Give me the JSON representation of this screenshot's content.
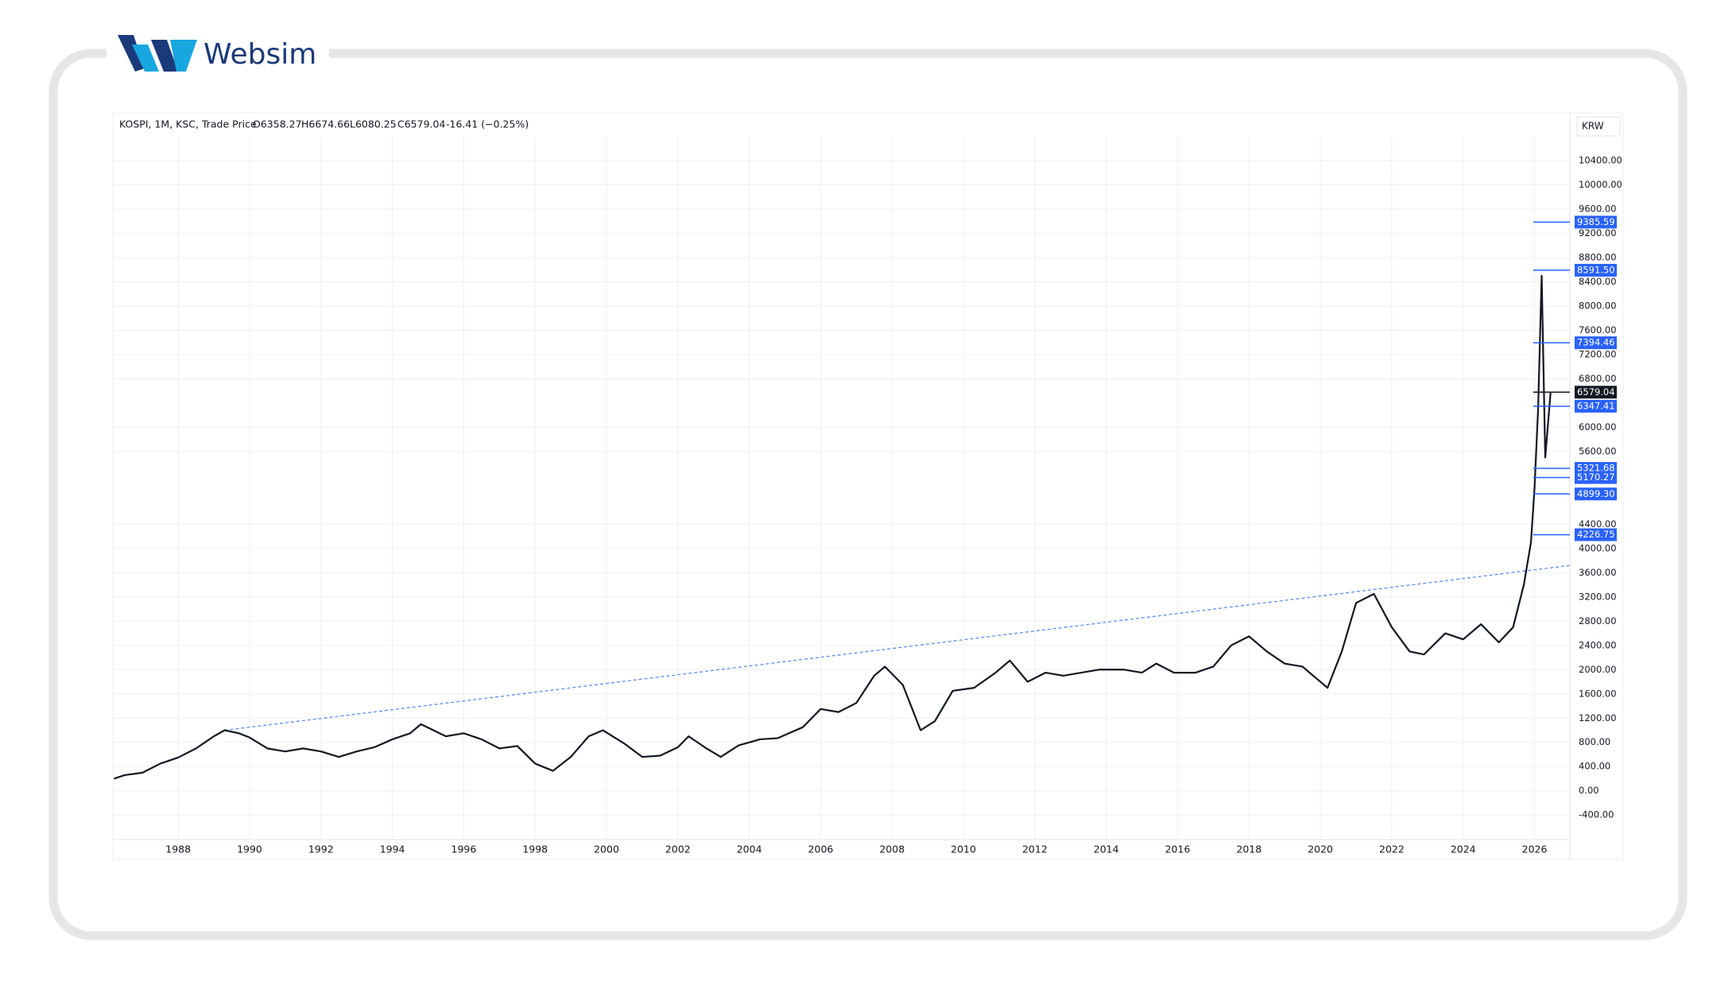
{
  "brand": "Websim",
  "chart_data": {
    "type": "line",
    "title": "KOSPI, 1M, KSC, Trade Price",
    "ohlc_header": [
      "O6358.27",
      "H6674.66",
      "L6080.25",
      "C6579.04",
      "-16.41 (−0.25%)"
    ],
    "currency": "KRW",
    "color": "#131722",
    "x": [
      1986.2,
      1986.5,
      1987.0,
      1987.5,
      1988.0,
      1988.5,
      1989.0,
      1989.3,
      1989.7,
      1990.0,
      1990.5,
      1991.0,
      1991.5,
      1992.0,
      1992.5,
      1993.0,
      1993.5,
      1994.0,
      1994.5,
      1994.8,
      1995.5,
      1996.0,
      1996.5,
      1997.0,
      1997.5,
      1998.0,
      1998.5,
      1999.0,
      1999.5,
      1999.9,
      2000.5,
      2001.0,
      2001.5,
      2002.0,
      2002.3,
      2002.8,
      2003.2,
      2003.7,
      2004.3,
      2004.8,
      2005.5,
      2006.0,
      2006.5,
      2007.0,
      2007.5,
      2007.8,
      2008.3,
      2008.8,
      2009.2,
      2009.7,
      2010.3,
      2010.9,
      2011.3,
      2011.8,
      2012.3,
      2012.8,
      2013.3,
      2013.8,
      2014.5,
      2015.0,
      2015.4,
      2015.9,
      2016.5,
      2017.0,
      2017.5,
      2018.0,
      2018.5,
      2019.0,
      2019.5,
      2020.2,
      2020.6,
      2021.0,
      2021.5,
      2022.0,
      2022.5,
      2022.9,
      2023.5,
      2024.0,
      2024.5,
      2025.0,
      2025.4,
      2025.7,
      2025.9,
      2026.0,
      2026.1,
      2026.2,
      2026.3,
      2026.45
    ],
    "values": [
      200,
      260,
      300,
      450,
      550,
      700,
      900,
      1000,
      950,
      880,
      700,
      650,
      700,
      650,
      560,
      650,
      720,
      850,
      950,
      1100,
      900,
      950,
      850,
      700,
      740,
      450,
      330,
      560,
      900,
      1000,
      780,
      560,
      580,
      720,
      900,
      700,
      560,
      750,
      850,
      870,
      1050,
      1350,
      1300,
      1450,
      1900,
      2050,
      1750,
      1000,
      1150,
      1650,
      1700,
      1950,
      2150,
      1800,
      1950,
      1900,
      1950,
      2000,
      2000,
      1950,
      2100,
      1950,
      1950,
      2050,
      2400,
      2550,
      2300,
      2100,
      2050,
      1700,
      2300,
      3100,
      3250,
      2700,
      2300,
      2250,
      2600,
      2500,
      2750,
      2450,
      2700,
      3400,
      4100,
      5000,
      6300,
      8500,
      5500,
      6579
    ],
    "trendline": {
      "x": [
        1989.3,
        2027.0
      ],
      "y": [
        1000,
        3720
      ],
      "color": "#5b8def"
    },
    "price_lines": [
      {
        "value": 9385.59,
        "label": "9385.59",
        "color": "#2962ff"
      },
      {
        "value": 8591.5,
        "label": "8591.50",
        "color": "#2962ff"
      },
      {
        "value": 7394.46,
        "label": "7394.46",
        "color": "#2962ff"
      },
      {
        "value": 6579.04,
        "label": "6579.04",
        "color": "#131722"
      },
      {
        "value": 6347.41,
        "label": "6347.41",
        "color": "#2962ff"
      },
      {
        "value": 5321.68,
        "label": "5321.68",
        "color": "#2962ff"
      },
      {
        "value": 5170.27,
        "label": "5170.27",
        "color": "#2962ff"
      },
      {
        "value": 4899.3,
        "label": "4899.30",
        "color": "#2962ff"
      },
      {
        "value": 4226.75,
        "label": "4226.75",
        "color": "#2962ff"
      }
    ],
    "xlim": [
      1986.17,
      2026.99
    ],
    "xticks": [
      1988,
      1990,
      1992,
      1994,
      1996,
      1998,
      2000,
      2002,
      2004,
      2006,
      2008,
      2010,
      2012,
      2014,
      2016,
      2018,
      2020,
      2022,
      2024,
      2026
    ],
    "ylim": [
      -804,
      11188
    ],
    "yticks": [
      {
        "value": -400,
        "label": "-400.00"
      },
      {
        "value": 0,
        "label": "0.00"
      },
      {
        "value": 400,
        "label": "400.00"
      },
      {
        "value": 800,
        "label": "800.00"
      },
      {
        "value": 1200,
        "label": "1200.00"
      },
      {
        "value": 1600,
        "label": "1600.00"
      },
      {
        "value": 2000,
        "label": "2000.00"
      },
      {
        "value": 2400,
        "label": "2400.00"
      },
      {
        "value": 2800,
        "label": "2800.00"
      },
      {
        "value": 3200,
        "label": "3200.00"
      },
      {
        "value": 3600,
        "label": "3600.00"
      },
      {
        "value": 4000,
        "label": "4000.00"
      },
      {
        "value": 4400,
        "label": "4400.00"
      },
      {
        "value": 5600,
        "label": "5600.00"
      },
      {
        "value": 6000,
        "label": "6000.00"
      },
      {
        "value": 6800,
        "label": "6800.00"
      },
      {
        "value": 7200,
        "label": "7200.00"
      },
      {
        "value": 7600,
        "label": "7600.00"
      },
      {
        "value": 8000,
        "label": "8000.00"
      },
      {
        "value": 8400,
        "label": "8400.00"
      },
      {
        "value": 8800,
        "label": "8800.00"
      },
      {
        "value": 9200,
        "label": "9200.00"
      },
      {
        "value": 9600,
        "label": "9600.00"
      },
      {
        "value": 10000,
        "label": "10000.00"
      },
      {
        "value": 10400,
        "label": "10400.00"
      }
    ],
    "grid": true
  }
}
